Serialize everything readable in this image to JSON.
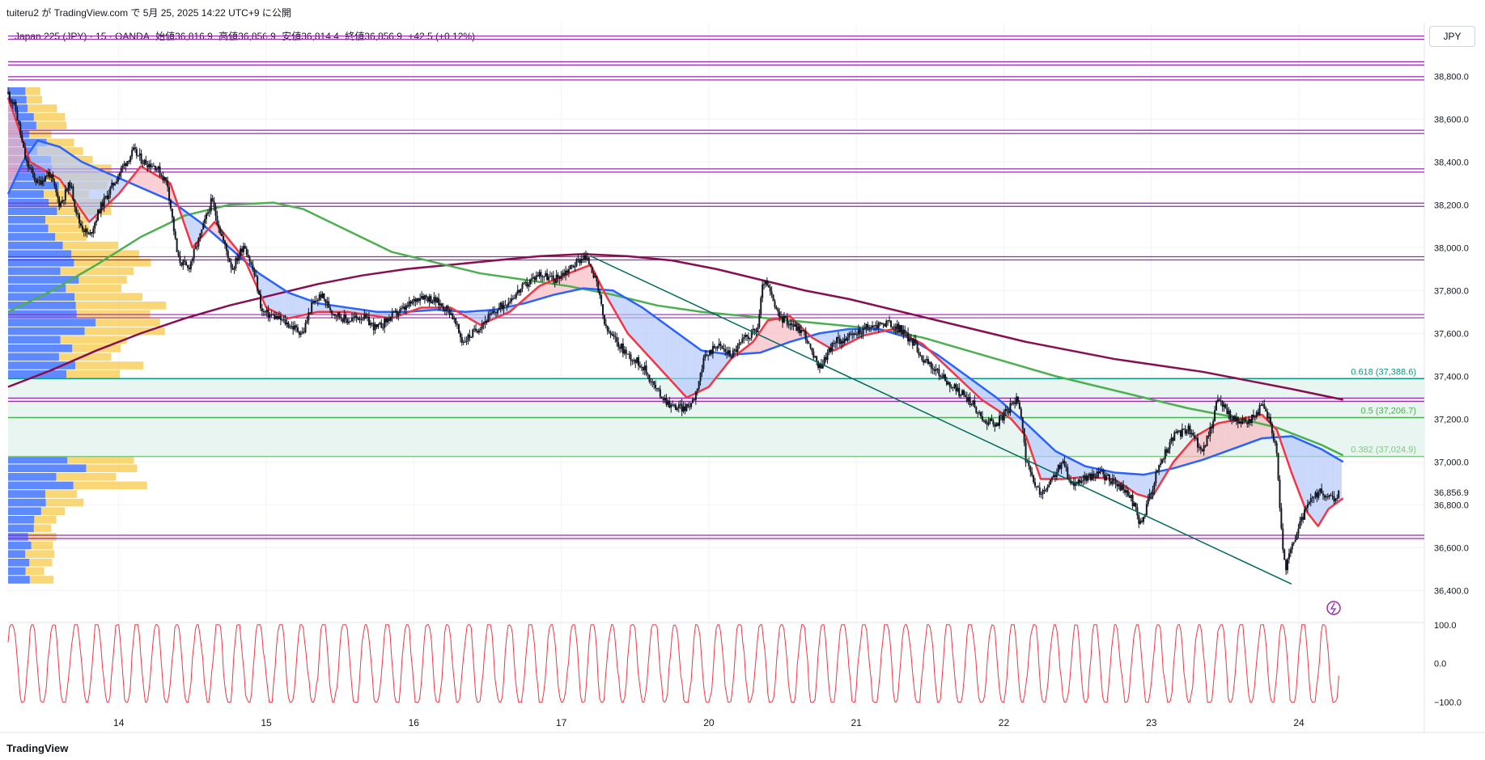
{
  "header": {
    "published": "tuiteru2 が TradingView.com で 5月 25, 2025 14:22 UTC+9 に公開",
    "symbol": "Japan 225 (JPY) · 15 · OANDA",
    "open": "始値36,816.9",
    "high": "高値36,856.9",
    "low": "安値36,814.4",
    "close": "終値36,856.9",
    "change": "+42.5 (+0.12%)",
    "currency": "JPY"
  },
  "footer": {
    "logo": "TradingView"
  },
  "chart_data": {
    "type": "line",
    "title": "Japan 225 (JPY) · 15 · OANDA",
    "ylim": [
      36250,
      39050
    ],
    "y_ticks": [
      "38,800.0",
      "38,600.0",
      "38,400.0",
      "38,200.0",
      "38,000.0",
      "37,800.0",
      "37,600.0",
      "37,400.0",
      "37,200.0",
      "37,000.0",
      "36,800.0",
      "36,600.0",
      "36,400.0"
    ],
    "y_tick_values": [
      38800,
      38600,
      38400,
      38200,
      38000,
      37800,
      37600,
      37400,
      37200,
      37000,
      36800,
      36600,
      36400
    ],
    "x_ticks": [
      "14",
      "15",
      "16",
      "17",
      "20",
      "21",
      "22",
      "23",
      "24"
    ],
    "x_tick_values": [
      0.75,
      1.75,
      2.75,
      3.75,
      4.75,
      5.75,
      6.75,
      7.75,
      8.75
    ],
    "x_range": [
      0,
      9.6
    ],
    "last_price": 36856.9,
    "last_price_label": "36,856.9",
    "price": [
      [
        0.0,
        38720
      ],
      [
        0.05,
        38650
      ],
      [
        0.12,
        38400
      ],
      [
        0.2,
        38300
      ],
      [
        0.28,
        38350
      ],
      [
        0.35,
        38200
      ],
      [
        0.42,
        38300
      ],
      [
        0.48,
        38120
      ],
      [
        0.55,
        38050
      ],
      [
        0.62,
        38180
      ],
      [
        0.7,
        38280
      ],
      [
        0.78,
        38380
      ],
      [
        0.85,
        38450
      ],
      [
        0.92,
        38400
      ],
      [
        1.0,
        38380
      ],
      [
        1.08,
        38300
      ],
      [
        1.15,
        37950
      ],
      [
        1.22,
        37900
      ],
      [
        1.3,
        38050
      ],
      [
        1.38,
        38220
      ],
      [
        1.45,
        38050
      ],
      [
        1.52,
        37900
      ],
      [
        1.6,
        38020
      ],
      [
        1.68,
        37850
      ],
      [
        1.72,
        37700
      ],
      [
        1.8,
        37680
      ],
      [
        1.88,
        37650
      ],
      [
        1.95,
        37620
      ],
      [
        2.0,
        37600
      ],
      [
        2.05,
        37720
      ],
      [
        2.12,
        37780
      ],
      [
        2.2,
        37700
      ],
      [
        2.3,
        37660
      ],
      [
        2.4,
        37680
      ],
      [
        2.5,
        37620
      ],
      [
        2.6,
        37680
      ],
      [
        2.7,
        37720
      ],
      [
        2.8,
        37780
      ],
      [
        2.9,
        37750
      ],
      [
        3.0,
        37700
      ],
      [
        3.08,
        37560
      ],
      [
        3.15,
        37600
      ],
      [
        3.22,
        37650
      ],
      [
        3.3,
        37700
      ],
      [
        3.4,
        37760
      ],
      [
        3.5,
        37820
      ],
      [
        3.6,
        37880
      ],
      [
        3.7,
        37850
      ],
      [
        3.8,
        37900
      ],
      [
        3.9,
        37960
      ],
      [
        3.95,
        37920
      ],
      [
        4.0,
        37800
      ],
      [
        4.05,
        37620
      ],
      [
        4.1,
        37580
      ],
      [
        4.2,
        37500
      ],
      [
        4.3,
        37450
      ],
      [
        4.4,
        37330
      ],
      [
        4.5,
        37260
      ],
      [
        4.6,
        37250
      ],
      [
        4.65,
        37300
      ],
      [
        4.72,
        37480
      ],
      [
        4.8,
        37550
      ],
      [
        4.9,
        37500
      ],
      [
        5.0,
        37580
      ],
      [
        5.08,
        37620
      ],
      [
        5.12,
        37850
      ],
      [
        5.16,
        37800
      ],
      [
        5.22,
        37680
      ],
      [
        5.3,
        37650
      ],
      [
        5.4,
        37600
      ],
      [
        5.45,
        37500
      ],
      [
        5.5,
        37440
      ],
      [
        5.55,
        37500
      ],
      [
        5.6,
        37560
      ],
      [
        5.7,
        37580
      ],
      [
        5.8,
        37620
      ],
      [
        5.9,
        37640
      ],
      [
        5.95,
        37650
      ],
      [
        6.05,
        37620
      ],
      [
        6.1,
        37580
      ],
      [
        6.15,
        37550
      ],
      [
        6.2,
        37480
      ],
      [
        6.3,
        37420
      ],
      [
        6.4,
        37350
      ],
      [
        6.5,
        37300
      ],
      [
        6.55,
        37260
      ],
      [
        6.6,
        37200
      ],
      [
        6.7,
        37180
      ],
      [
        6.8,
        37260
      ],
      [
        6.85,
        37300
      ],
      [
        6.88,
        37150
      ],
      [
        6.9,
        37000
      ],
      [
        6.95,
        36900
      ],
      [
        7.0,
        36850
      ],
      [
        7.05,
        36880
      ],
      [
        7.1,
        36950
      ],
      [
        7.15,
        37000
      ],
      [
        7.2,
        36900
      ],
      [
        7.3,
        36920
      ],
      [
        7.4,
        36950
      ],
      [
        7.5,
        36900
      ],
      [
        7.6,
        36850
      ],
      [
        7.65,
        36760
      ],
      [
        7.68,
        36700
      ],
      [
        7.72,
        36800
      ],
      [
        7.8,
        36980
      ],
      [
        7.9,
        37120
      ],
      [
        8.0,
        37150
      ],
      [
        8.05,
        37100
      ],
      [
        8.1,
        37050
      ],
      [
        8.15,
        37150
      ],
      [
        8.2,
        37300
      ],
      [
        8.25,
        37250
      ],
      [
        8.3,
        37200
      ],
      [
        8.4,
        37180
      ],
      [
        8.5,
        37260
      ],
      [
        8.55,
        37200
      ],
      [
        8.6,
        37050
      ],
      [
        8.62,
        36800
      ],
      [
        8.64,
        36600
      ],
      [
        8.66,
        36500
      ],
      [
        8.7,
        36600
      ],
      [
        8.75,
        36700
      ],
      [
        8.8,
        36780
      ],
      [
        8.85,
        36830
      ],
      [
        8.9,
        36860
      ],
      [
        8.95,
        36830
      ],
      [
        9.0,
        36820
      ],
      [
        9.02,
        36857
      ]
    ],
    "ema_red": [
      [
        0.0,
        38700
      ],
      [
        0.15,
        38400
      ],
      [
        0.35,
        38320
      ],
      [
        0.55,
        38120
      ],
      [
        0.75,
        38250
      ],
      [
        0.9,
        38380
      ],
      [
        1.1,
        38300
      ],
      [
        1.25,
        38000
      ],
      [
        1.4,
        38120
      ],
      [
        1.6,
        37950
      ],
      [
        1.75,
        37720
      ],
      [
        1.9,
        37670
      ],
      [
        2.1,
        37700
      ],
      [
        2.3,
        37700
      ],
      [
        2.6,
        37670
      ],
      [
        2.8,
        37720
      ],
      [
        3.0,
        37720
      ],
      [
        3.2,
        37640
      ],
      [
        3.4,
        37700
      ],
      [
        3.6,
        37820
      ],
      [
        3.8,
        37880
      ],
      [
        3.95,
        37920
      ],
      [
        4.05,
        37780
      ],
      [
        4.2,
        37600
      ],
      [
        4.4,
        37450
      ],
      [
        4.6,
        37300
      ],
      [
        4.75,
        37350
      ],
      [
        4.9,
        37480
      ],
      [
        5.05,
        37560
      ],
      [
        5.15,
        37660
      ],
      [
        5.3,
        37680
      ],
      [
        5.45,
        37580
      ],
      [
        5.6,
        37520
      ],
      [
        5.8,
        37590
      ],
      [
        6.0,
        37620
      ],
      [
        6.2,
        37550
      ],
      [
        6.4,
        37420
      ],
      [
        6.6,
        37290
      ],
      [
        6.8,
        37200
      ],
      [
        6.9,
        37120
      ],
      [
        7.0,
        36920
      ],
      [
        7.15,
        36920
      ],
      [
        7.3,
        36930
      ],
      [
        7.5,
        36920
      ],
      [
        7.65,
        36850
      ],
      [
        7.75,
        36830
      ],
      [
        7.9,
        37000
      ],
      [
        8.05,
        37120
      ],
      [
        8.2,
        37180
      ],
      [
        8.35,
        37200
      ],
      [
        8.5,
        37220
      ],
      [
        8.6,
        37150
      ],
      [
        8.7,
        36950
      ],
      [
        8.8,
        36770
      ],
      [
        8.88,
        36700
      ],
      [
        8.95,
        36780
      ],
      [
        9.05,
        36830
      ]
    ],
    "ema_blue": [
      [
        0.0,
        38250
      ],
      [
        0.1,
        38400
      ],
      [
        0.2,
        38500
      ],
      [
        0.35,
        38470
      ],
      [
        0.5,
        38400
      ],
      [
        0.7,
        38340
      ],
      [
        0.9,
        38280
      ],
      [
        1.1,
        38220
      ],
      [
        1.3,
        38120
      ],
      [
        1.5,
        38000
      ],
      [
        1.7,
        37880
      ],
      [
        1.9,
        37790
      ],
      [
        2.1,
        37740
      ],
      [
        2.3,
        37720
      ],
      [
        2.5,
        37700
      ],
      [
        2.7,
        37700
      ],
      [
        2.9,
        37710
      ],
      [
        3.1,
        37700
      ],
      [
        3.3,
        37710
      ],
      [
        3.5,
        37740
      ],
      [
        3.7,
        37780
      ],
      [
        3.9,
        37810
      ],
      [
        4.1,
        37800
      ],
      [
        4.3,
        37720
      ],
      [
        4.5,
        37620
      ],
      [
        4.7,
        37520
      ],
      [
        4.9,
        37500
      ],
      [
        5.1,
        37510
      ],
      [
        5.3,
        37560
      ],
      [
        5.5,
        37600
      ],
      [
        5.7,
        37620
      ],
      [
        5.9,
        37620
      ],
      [
        6.1,
        37580
      ],
      [
        6.3,
        37500
      ],
      [
        6.5,
        37400
      ],
      [
        6.7,
        37300
      ],
      [
        6.9,
        37180
      ],
      [
        7.1,
        37050
      ],
      [
        7.3,
        36980
      ],
      [
        7.5,
        36950
      ],
      [
        7.7,
        36940
      ],
      [
        7.9,
        36970
      ],
      [
        8.1,
        37010
      ],
      [
        8.3,
        37060
      ],
      [
        8.5,
        37110
      ],
      [
        8.7,
        37120
      ],
      [
        8.9,
        37060
      ],
      [
        9.05,
        37000
      ]
    ],
    "ema_green": [
      [
        0.0,
        37700
      ],
      [
        0.3,
        37800
      ],
      [
        0.6,
        37920
      ],
      [
        0.9,
        38050
      ],
      [
        1.2,
        38150
      ],
      [
        1.5,
        38200
      ],
      [
        1.8,
        38210
      ],
      [
        2.0,
        38180
      ],
      [
        2.3,
        38080
      ],
      [
        2.6,
        37980
      ],
      [
        2.9,
        37930
      ],
      [
        3.2,
        37880
      ],
      [
        3.5,
        37850
      ],
      [
        3.8,
        37820
      ],
      [
        4.1,
        37780
      ],
      [
        4.4,
        37730
      ],
      [
        4.7,
        37700
      ],
      [
        5.0,
        37680
      ],
      [
        5.3,
        37660
      ],
      [
        5.6,
        37640
      ],
      [
        5.9,
        37620
      ],
      [
        6.2,
        37580
      ],
      [
        6.5,
        37520
      ],
      [
        6.8,
        37460
      ],
      [
        7.1,
        37400
      ],
      [
        7.4,
        37350
      ],
      [
        7.7,
        37300
      ],
      [
        8.0,
        37250
      ],
      [
        8.3,
        37210
      ],
      [
        8.6,
        37160
      ],
      [
        8.9,
        37080
      ],
      [
        9.05,
        37030
      ]
    ],
    "ema_maroon": [
      [
        0.0,
        37350
      ],
      [
        0.3,
        37430
      ],
      [
        0.6,
        37520
      ],
      [
        0.9,
        37600
      ],
      [
        1.2,
        37670
      ],
      [
        1.5,
        37730
      ],
      [
        1.8,
        37780
      ],
      [
        2.1,
        37830
      ],
      [
        2.4,
        37870
      ],
      [
        2.7,
        37900
      ],
      [
        3.0,
        37920
      ],
      [
        3.3,
        37940
      ],
      [
        3.6,
        37960
      ],
      [
        3.9,
        37970
      ],
      [
        4.2,
        37960
      ],
      [
        4.5,
        37940
      ],
      [
        4.8,
        37900
      ],
      [
        5.1,
        37850
      ],
      [
        5.4,
        37800
      ],
      [
        5.7,
        37760
      ],
      [
        6.0,
        37710
      ],
      [
        6.3,
        37660
      ],
      [
        6.6,
        37610
      ],
      [
        6.9,
        37560
      ],
      [
        7.2,
        37520
      ],
      [
        7.5,
        37480
      ],
      [
        7.8,
        37450
      ],
      [
        8.1,
        37420
      ],
      [
        8.4,
        37380
      ],
      [
        8.7,
        37340
      ],
      [
        9.05,
        37290
      ]
    ],
    "horizontal_levels_purple": [
      38980,
      38860,
      38790,
      38540,
      38360,
      38200,
      37950,
      37680,
      37290,
      36650
    ],
    "fib_levels": [
      {
        "label": "0.618 (37,388.6)",
        "value": 37388.6,
        "color": "#089981"
      },
      {
        "label": "0.5 (37,206.7)",
        "value": 37206.7,
        "color": "#4caf50"
      },
      {
        "label": "0.382 (37,024.9)",
        "value": 37024.9,
        "color": "#81c784"
      }
    ],
    "trendline": [
      [
        3.95,
        37960
      ],
      [
        8.7,
        36430
      ]
    ],
    "oscillator": {
      "y_ticks": [
        "100.0",
        "0.0",
        "−100.0"
      ],
      "y_tick_values": [
        100,
        0,
        -100
      ],
      "ylim": [
        -120,
        110
      ]
    },
    "volume_profile": {
      "price_start": 36430,
      "step": 40
    },
    "colors": {
      "candle": "#131722",
      "ema_red": "#f23645",
      "ema_blue": "#2962ff",
      "ema_green": "#4caf50",
      "ema_maroon": "#880e4f",
      "purple_level": "#9c27b0",
      "fib_zone": "#e8f5f1",
      "vp_blue": "#2962ff",
      "vp_yellow": "#f7c948",
      "oscillator": "#f23645",
      "trendline": "#006b5b",
      "fill_red": "#f8bbc0",
      "fill_blue": "#b3c8fb"
    }
  }
}
